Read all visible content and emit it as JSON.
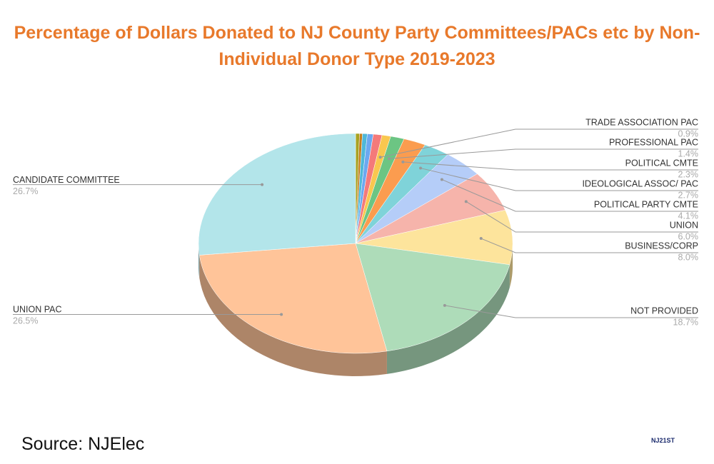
{
  "chart_data": {
    "type": "pie",
    "title": "Percentage of Dollars Donated to NJ County Party Committees/PACs etc by Non-Individual Donor Type 2019-2023",
    "categories": [
      null,
      null,
      null,
      null,
      null,
      "TRADE ASSOCIATION PAC",
      "PROFESSIONAL PAC",
      "POLITICAL CMTE",
      "IDEOLOGICAL ASSOC/ PAC",
      "POLITICAL PARTY CMTE",
      "UNION",
      "BUSINESS/CORP",
      "NOT PROVIDED",
      "UNION PAC",
      "CANDIDATE COMMITTEE"
    ],
    "values": [
      0.4,
      0.3,
      0.5,
      0.6,
      0.9,
      0.9,
      1.4,
      2.3,
      2.7,
      4.1,
      6.0,
      8.0,
      18.7,
      26.5,
      26.7
    ],
    "value_labels": [
      null,
      null,
      null,
      null,
      null,
      "0.9%",
      "1.4%",
      "2.3%",
      "2.7%",
      "4.1%",
      "6.0%",
      "8.0%",
      "18.7%",
      "26.5%",
      "26.7%"
    ],
    "colors": [
      "#a8a222",
      "#c47e1e",
      "#4fb8d8",
      "#6ca8f0",
      "#f47a7a",
      "#f9c74f",
      "#6cc583",
      "#fb9c4f",
      "#7fd3d9",
      "#b5cdf8",
      "#f6b4ab",
      "#fde49c",
      "#aedcb9",
      "#ffc499",
      "#b3e5ea"
    ],
    "source": "Source: NJElec",
    "logo_text": "NJ21ST"
  }
}
